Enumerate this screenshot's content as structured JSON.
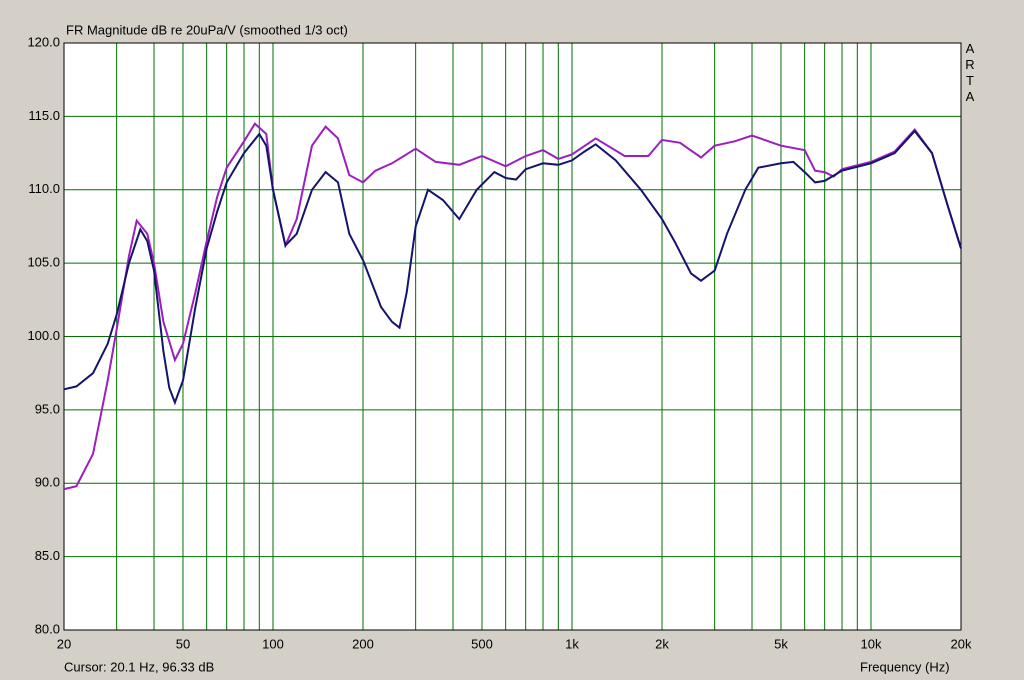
{
  "chart_data": {
    "type": "line",
    "title": "FR Magnitude dB re 20uPa/V (smoothed 1/3 oct)",
    "x_label": "Frequency (Hz)",
    "watermark": "ARTA",
    "status": "Cursor: 20.1 Hz, 96.33 dB",
    "log_x": true,
    "grid": true,
    "xlim": [
      20,
      20000
    ],
    "ylim": [
      80,
      120
    ],
    "xticks": [
      20,
      50,
      100,
      200,
      500,
      {
        "value": 1000,
        "label": "1k"
      },
      {
        "value": 2000,
        "label": "2k"
      },
      {
        "value": 5000,
        "label": "5k"
      },
      {
        "value": 10000,
        "label": "10k"
      },
      {
        "value": 20000,
        "label": "20k"
      }
    ],
    "xminor": [
      30,
      40,
      60,
      70,
      80,
      90,
      300,
      400,
      600,
      700,
      800,
      900,
      3000,
      4000,
      6000,
      7000,
      8000,
      9000
    ],
    "yticks": [
      {
        "value": 80,
        "label": "80.0"
      },
      {
        "value": 85,
        "label": "85.0"
      },
      {
        "value": 90,
        "label": "90.0"
      },
      {
        "value": 95,
        "label": "95.0"
      },
      {
        "value": 100,
        "label": "100.0"
      },
      {
        "value": 105,
        "label": "105.0"
      },
      {
        "value": 110,
        "label": "110.0"
      },
      {
        "value": 115,
        "label": "115.0"
      },
      {
        "value": 120,
        "label": "120.0"
      }
    ],
    "series": [
      {
        "color": "#9a1fbf",
        "x": [
          20,
          22,
          25,
          28,
          30,
          33,
          35,
          38,
          40,
          43,
          47,
          50,
          55,
          60,
          65,
          70,
          80,
          87,
          95,
          100,
          110,
          120,
          135,
          150,
          165,
          180,
          200,
          220,
          250,
          300,
          350,
          420,
          500,
          600,
          700,
          800,
          900,
          1000,
          1200,
          1500,
          1800,
          2000,
          2300,
          2700,
          3000,
          3500,
          4000,
          5000,
          6000,
          6500,
          7000,
          7500,
          8000,
          10000,
          12000,
          14000,
          16000,
          18000,
          20000
        ],
        "values": [
          89.6,
          89.8,
          92,
          97,
          100.5,
          105.5,
          107.9,
          107,
          105,
          101,
          98.4,
          99.5,
          103,
          106.5,
          109.5,
          111.5,
          113.3,
          114.5,
          113.8,
          110,
          106.2,
          108,
          113,
          114.3,
          113.5,
          111,
          110.5,
          111.3,
          111.8,
          112.8,
          111.9,
          111.7,
          112.3,
          111.6,
          112.3,
          112.7,
          112.1,
          112.4,
          113.5,
          112.3,
          112.3,
          113.4,
          113.2,
          112.2,
          113,
          113.3,
          113.7,
          113,
          112.7,
          111.3,
          111.2,
          110.9,
          111.4,
          111.9,
          112.6,
          114.1,
          112.5,
          109,
          106
        ]
      },
      {
        "color": "#14146e",
        "x": [
          20,
          22,
          25,
          28,
          30,
          33,
          36,
          38,
          40,
          43,
          45,
          47,
          50,
          55,
          60,
          65,
          70,
          80,
          90,
          95,
          100,
          110,
          120,
          135,
          150,
          165,
          180,
          200,
          230,
          250,
          265,
          280,
          300,
          330,
          370,
          420,
          480,
          550,
          600,
          650,
          700,
          800,
          900,
          1000,
          1100,
          1200,
          1400,
          1700,
          2000,
          2200,
          2500,
          2700,
          3000,
          3300,
          3800,
          4200,
          5000,
          5500,
          6000,
          6500,
          7000,
          8000,
          10000,
          12000,
          14000,
          16000,
          18000,
          20000
        ],
        "values": [
          96.4,
          96.6,
          97.5,
          99.5,
          101.5,
          105,
          107.3,
          106.5,
          104.5,
          99,
          96.5,
          95.5,
          97,
          102,
          106,
          108.5,
          110.5,
          112.5,
          113.8,
          113,
          110,
          106.2,
          107,
          110,
          111.2,
          110.5,
          107,
          105.2,
          102,
          101,
          100.6,
          103,
          107.5,
          110,
          109.3,
          108,
          110,
          111.2,
          110.8,
          110.7,
          111.4,
          111.8,
          111.7,
          112,
          112.6,
          113.1,
          112,
          110,
          108,
          106.5,
          104.3,
          103.8,
          104.5,
          107,
          110,
          111.5,
          111.8,
          111.9,
          111.2,
          110.5,
          110.6,
          111.3,
          111.8,
          112.5,
          114,
          112.5,
          109,
          106
        ]
      }
    ]
  }
}
